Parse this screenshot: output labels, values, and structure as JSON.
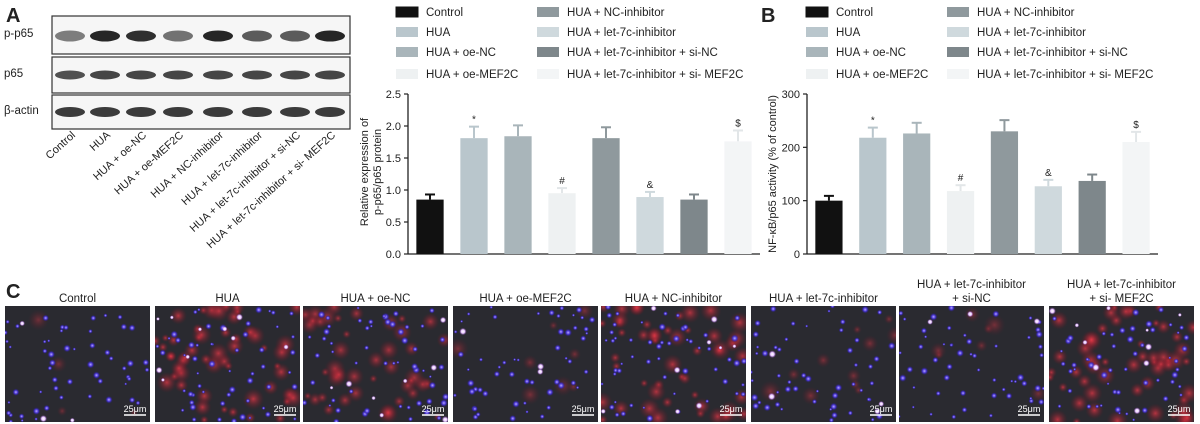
{
  "panels": {
    "a": "A",
    "b": "B",
    "c": "C"
  },
  "western_blot": {
    "row_labels": [
      "p-p65",
      "p65",
      "β-actin"
    ],
    "lane_labels": [
      "Control",
      "HUA",
      "HUA + oe-NC",
      "HUA + oe-MEF2C",
      "HUA + NC-inhibitor",
      "HUA + let-7c-inhibitor",
      "HUA + let-7c-inhibitor + si-NC",
      "HUA + let-7c-inhibitor + si- MEF2C"
    ]
  },
  "legend": [
    {
      "label": "Control",
      "color": "#111111"
    },
    {
      "label": "HUA",
      "color": "#b9c6cc"
    },
    {
      "label": "HUA + oe-NC",
      "color": "#a9b5ba"
    },
    {
      "label": "HUA + oe-MEF2C",
      "color": "#eef1f2"
    },
    {
      "label": "HUA + NC-inhibitor",
      "color": "#8f999d"
    },
    {
      "label": "HUA + let-7c-inhibitor",
      "color": "#cfd9dd"
    },
    {
      "label": "HUA + let-7c-inhibitor + si-NC",
      "color": "#7e878b"
    },
    {
      "label": "HUA + let-7c-inhibitor + si- MEF2C",
      "color": "#f3f5f6"
    }
  ],
  "chart_data": [
    {
      "type": "bar",
      "ylabel_line1": "Relative expression of",
      "ylabel_line2": "p-p65/p65 protein",
      "ylim": [
        0,
        2.5
      ],
      "yticks": [
        "0.0",
        "0.5",
        "1.0",
        "1.5",
        "2.0",
        "2.5"
      ],
      "values": [
        0.85,
        1.81,
        1.84,
        0.95,
        1.81,
        0.89,
        0.85,
        1.76
      ],
      "errors": [
        0.08,
        0.18,
        0.17,
        0.08,
        0.17,
        0.08,
        0.08,
        0.17
      ],
      "significance": [
        "",
        "*",
        "",
        "#",
        "",
        "&",
        "",
        "$"
      ]
    },
    {
      "type": "bar",
      "ylabel": "NF-κB/p65 activity (% of control)",
      "ylim": [
        0,
        300
      ],
      "yticks": [
        "0",
        "100",
        "200",
        "300"
      ],
      "values": [
        100,
        218,
        226,
        118,
        230,
        127,
        137,
        210
      ],
      "errors": [
        9,
        19,
        20,
        11,
        21,
        12,
        12,
        19
      ],
      "significance": [
        "",
        "*",
        "",
        "#",
        "",
        "&",
        "",
        "$"
      ]
    }
  ],
  "images": {
    "titles": [
      [
        "Control"
      ],
      [
        "HUA"
      ],
      [
        "HUA + oe-NC"
      ],
      [
        "HUA + oe-MEF2C"
      ],
      [
        "HUA + NC-inhibitor"
      ],
      [
        "HUA + let-7c-inhibitor"
      ],
      [
        "HUA + let-7c-inhibitor",
        "+ si-NC"
      ],
      [
        "HUA + let-7c-inhibitor",
        "+ si- MEF2C"
      ]
    ],
    "scale_label": "25μm",
    "red_intensity": [
      0.05,
      0.75,
      0.6,
      0.12,
      0.7,
      0.15,
      0.1,
      0.75
    ]
  }
}
